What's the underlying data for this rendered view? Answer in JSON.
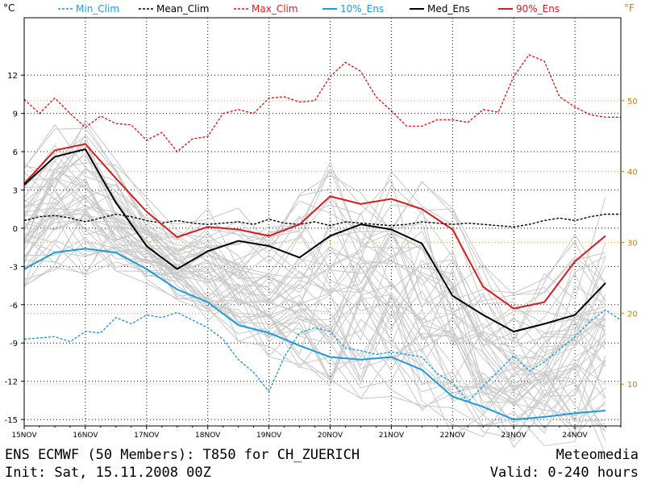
{
  "chart_data": {
    "type": "line",
    "title": "ENS ECMWF (50 Members): T850 for CH_ZUERICH",
    "init": "Init: Sat, 15.11.2008 00Z",
    "brand": "Meteomedia",
    "valid": "Valid: 0-240 hours",
    "y_unit_left": "°C",
    "y_unit_right": "°F",
    "ylim": [
      -15.5,
      16.5
    ],
    "xlim": [
      0,
      9.75
    ],
    "y_ticks": [
      12,
      9,
      6,
      3,
      0,
      -3,
      -6,
      -9,
      -12,
      -15
    ],
    "y_ticks_right": [
      50,
      40,
      30,
      20,
      10
    ],
    "x_tick_labels": [
      "15NOV",
      "16NOV",
      "17NOV",
      "18NOV",
      "19NOV",
      "20NOV",
      "21NOV",
      "22NOV",
      "23NOV",
      "24NOV"
    ],
    "grid": true,
    "series": [
      {
        "name": "Min_Clim",
        "color": "#1e9bd7",
        "style": "dashed",
        "x": [
          0,
          0.25,
          0.5,
          0.75,
          1,
          1.25,
          1.5,
          1.75,
          2,
          2.25,
          2.5,
          2.75,
          3,
          3.25,
          3.5,
          3.75,
          4,
          4.25,
          4.5,
          4.75,
          5,
          5.25,
          5.5,
          5.75,
          6,
          6.25,
          6.5,
          6.75,
          7,
          7.25,
          7.5,
          7.75,
          8,
          8.25,
          8.5,
          8.75,
          9,
          9.25,
          9.5,
          9.75
        ],
        "y": [
          -8.7,
          -8.6,
          -8.5,
          -8.9,
          -8.1,
          -8.2,
          -7,
          -7.5,
          -6.8,
          -7,
          -6.6,
          -7.2,
          -7.8,
          -8.7,
          -10.3,
          -11.3,
          -12.8,
          -10.1,
          -8.2,
          -7.8,
          -8.1,
          -9.4,
          -9.6,
          -9.9,
          -9.7,
          -9.9,
          -10.1,
          -11.4,
          -12.1,
          -13.6,
          -12.4,
          -11.2,
          -10,
          -11.2,
          -10.5,
          -9.5,
          -8.5,
          -7.3,
          -6.4,
          -7.2
        ]
      },
      {
        "name": "Mean_Clim",
        "color": "#000000",
        "style": "dashed",
        "x": [
          0,
          0.25,
          0.5,
          0.75,
          1,
          1.25,
          1.5,
          1.75,
          2,
          2.25,
          2.5,
          2.75,
          3,
          3.25,
          3.5,
          3.75,
          4,
          4.25,
          4.5,
          4.75,
          5,
          5.25,
          5.5,
          5.75,
          6,
          6.25,
          6.5,
          6.75,
          7,
          7.25,
          7.5,
          7.75,
          8,
          8.25,
          8.5,
          8.75,
          9,
          9.25,
          9.5,
          9.75
        ],
        "y": [
          0.6,
          0.9,
          1.0,
          0.8,
          0.5,
          0.8,
          1.1,
          0.9,
          0.6,
          0.4,
          0.6,
          0.4,
          0.3,
          0.4,
          0.5,
          0.3,
          0.7,
          0.4,
          0.3,
          0.5,
          0.2,
          0.5,
          0.4,
          0.3,
          0.2,
          0.3,
          0.5,
          0.4,
          0.3,
          0.4,
          0.3,
          0.2,
          0.1,
          0.3,
          0.6,
          0.8,
          0.6,
          0.9,
          1.1,
          1.1
        ]
      },
      {
        "name": "Max_Clim",
        "color": "#d21e1e",
        "style": "dashed",
        "x": [
          0,
          0.25,
          0.5,
          0.75,
          1,
          1.25,
          1.5,
          1.75,
          2,
          2.25,
          2.5,
          2.75,
          3,
          3.25,
          3.5,
          3.75,
          4,
          4.25,
          4.5,
          4.75,
          5,
          5.25,
          5.5,
          5.75,
          6,
          6.25,
          6.5,
          6.75,
          7,
          7.25,
          7.5,
          7.75,
          8,
          8.25,
          8.5,
          8.75,
          9,
          9.25,
          9.5,
          9.75
        ],
        "y": [
          10.1,
          9,
          10.2,
          9,
          7.9,
          8.8,
          8.2,
          8.1,
          6.9,
          7.5,
          6,
          7,
          7.2,
          9,
          9.3,
          9,
          10.2,
          10.3,
          9.9,
          10,
          11.9,
          13,
          12.3,
          10.3,
          9.2,
          8,
          8,
          8.5,
          8.5,
          8.3,
          9.3,
          9.1,
          11.9,
          13.6,
          13.1,
          10.3,
          9.5,
          8.9,
          8.7,
          8.7
        ]
      },
      {
        "name": "10%_Ens",
        "color": "#1e9bd7",
        "style": "solid",
        "x": [
          0,
          0.5,
          1,
          1.5,
          2,
          2.5,
          3,
          3.5,
          4,
          4.5,
          5,
          5.5,
          6,
          6.5,
          7,
          7.5,
          8,
          8.5,
          9,
          9.5
        ],
        "y": [
          -3.2,
          -1.9,
          -1.6,
          -1.9,
          -3.2,
          -4.8,
          -5.8,
          -7.6,
          -8.2,
          -9.2,
          -10.1,
          -10.3,
          -10.1,
          -11.1,
          -13.2,
          -14.0,
          -15.0,
          -14.8,
          -14.5,
          -14.3
        ]
      },
      {
        "name": "Med_Ens",
        "color": "#000000",
        "style": "solid",
        "x": [
          0,
          0.5,
          1,
          1.5,
          2,
          2.5,
          3,
          3.5,
          4,
          4.5,
          5,
          5.5,
          6,
          6.5,
          7,
          7.5,
          8,
          8.5,
          9,
          9.5
        ],
        "y": [
          3.4,
          5.6,
          6.2,
          2.0,
          -1.4,
          -3.2,
          -1.8,
          -1.0,
          -1.4,
          -2.3,
          -0.6,
          0.3,
          -0.1,
          -1.2,
          -5.3,
          -6.8,
          -8.1,
          -7.5,
          -6.8,
          -4.3
        ]
      },
      {
        "name": "90%_Ens",
        "color": "#d21e1e",
        "style": "solid",
        "x": [
          0,
          0.5,
          1,
          1.5,
          2,
          2.5,
          3,
          3.5,
          4,
          4.5,
          5,
          5.5,
          6,
          6.5,
          7,
          7.5,
          8,
          8.5,
          9,
          9.5
        ],
        "y": [
          3.5,
          6.1,
          6.6,
          3.9,
          1.3,
          -0.7,
          0.1,
          -0.1,
          -0.6,
          0.3,
          2.5,
          1.9,
          2.3,
          1.5,
          -0.1,
          -4.6,
          -6.3,
          -5.8,
          -2.6,
          -0.6
        ]
      }
    ],
    "members_note": "50 grey ensemble member lines"
  }
}
